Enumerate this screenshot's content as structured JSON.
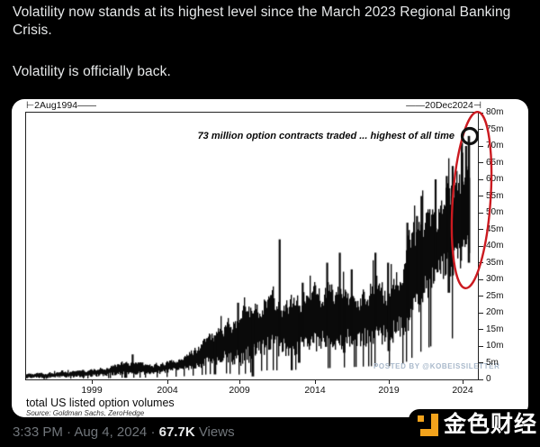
{
  "tweet": {
    "paragraph1": "Volatility now stands at its highest level since the March 2023 Regional Banking Crisis.",
    "paragraph2": "Volatility is officially back.",
    "timestamp": "3:33 PM · Aug 4, 2024",
    "separator": " · ",
    "views_count": "67.7K",
    "views_label": " Views"
  },
  "chart": {
    "range_start_label": "⊢2Aug1994——",
    "range_end_label": "——20Dec2024⊣",
    "annotation": "73 million option contracts traded ... highest of all time",
    "watermark": "POSTED BY @KOBEISSILETTER",
    "footer_title": "total US listed option volumes",
    "footer_source": "Source: Goldman Sachs, ZeroHedge",
    "y_ticks": [
      "80m",
      "75m",
      "70m",
      "65m",
      "60m",
      "55m",
      "50m",
      "45m",
      "40m",
      "35m",
      "30m",
      "25m",
      "20m",
      "15m",
      "10m",
      "5m",
      "0"
    ],
    "x_ticks": [
      "1999",
      "2004",
      "2009",
      "2014",
      "2019",
      "2024"
    ],
    "colors": {
      "bar_black": "#0a0a0a",
      "highlight_red": "#cb1a20",
      "marker_black": "#111111",
      "watermark_blue_gray": "#a9b9cb",
      "card_white": "#ffffff"
    }
  },
  "brand": {
    "name": "金色财经",
    "accent_orange": "#f2a31c"
  },
  "chart_data": {
    "type": "bar",
    "title": "total US listed option volumes",
    "source": "Goldman Sachs, ZeroHedge",
    "x_range": [
      "2Aug1994",
      "20Dec2024"
    ],
    "x_axis_ticks": [
      1999,
      2004,
      2009,
      2014,
      2019,
      2024
    ],
    "y_unit": "millions of option contracts per day",
    "ylim": [
      0,
      80
    ],
    "y_tick_step": 5,
    "annotation": {
      "text": "73 million option contracts traded ... highest of all time",
      "value_millions": 73
    },
    "last_point": {
      "date": "20Dec2024",
      "value_millions": 73,
      "marker": "open-circle",
      "highlight": "red-ellipse"
    },
    "envelope": {
      "note": "approximate daily min/max envelope read from the chart, millions of contracts",
      "year": [
        1994.6,
        1996,
        1998,
        2000,
        2001,
        2002,
        2003,
        2004,
        2005,
        2006,
        2007,
        2008,
        2009,
        2010,
        2011,
        2012,
        2013,
        2014,
        2015,
        2016,
        2017,
        2018,
        2019,
        2020,
        2021,
        2022,
        2023,
        2024,
        2025
      ],
      "low": [
        0.3,
        0.4,
        0.6,
        0.9,
        1.2,
        1.3,
        1.4,
        1.8,
        2.2,
        3.0,
        4.0,
        4.5,
        3.5,
        6.0,
        7.0,
        6.5,
        7.5,
        8.0,
        8.5,
        9.0,
        9.5,
        10.0,
        10.0,
        12.0,
        20.0,
        26.0,
        30.0,
        33.0,
        35.0
      ],
      "high": [
        1.8,
        2.2,
        2.8,
        4.2,
        6.0,
        5.5,
        5.0,
        6.0,
        7.5,
        10.5,
        15.0,
        19.0,
        22.0,
        25.0,
        30.0,
        26.0,
        27.0,
        30.0,
        32.0,
        30.0,
        27.0,
        34.0,
        31.0,
        42.0,
        52.0,
        58.0,
        63.0,
        68.0,
        73.0
      ]
    },
    "spikes_up": [
      [
        2001.75,
        7.5
      ],
      [
        2008.85,
        23
      ],
      [
        2011.65,
        42
      ],
      [
        2013.2,
        29
      ],
      [
        2014.85,
        35
      ],
      [
        2015.7,
        38
      ],
      [
        2016.5,
        33
      ],
      [
        2018.1,
        38
      ],
      [
        2018.95,
        35
      ],
      [
        2020.25,
        47
      ],
      [
        2020.9,
        49
      ],
      [
        2021.2,
        55
      ],
      [
        2022.15,
        60
      ],
      [
        2022.9,
        61
      ],
      [
        2023.3,
        64
      ],
      [
        2023.95,
        68
      ],
      [
        2024.2,
        70
      ]
    ],
    "spikes_down": [
      [
        2007.3,
        1.5
      ],
      [
        2009.85,
        0.9
      ],
      [
        2012.97,
        5.0
      ],
      [
        2016.0,
        8.0
      ],
      [
        2019.0,
        8.5
      ],
      [
        2023.05,
        26.0
      ]
    ]
  }
}
